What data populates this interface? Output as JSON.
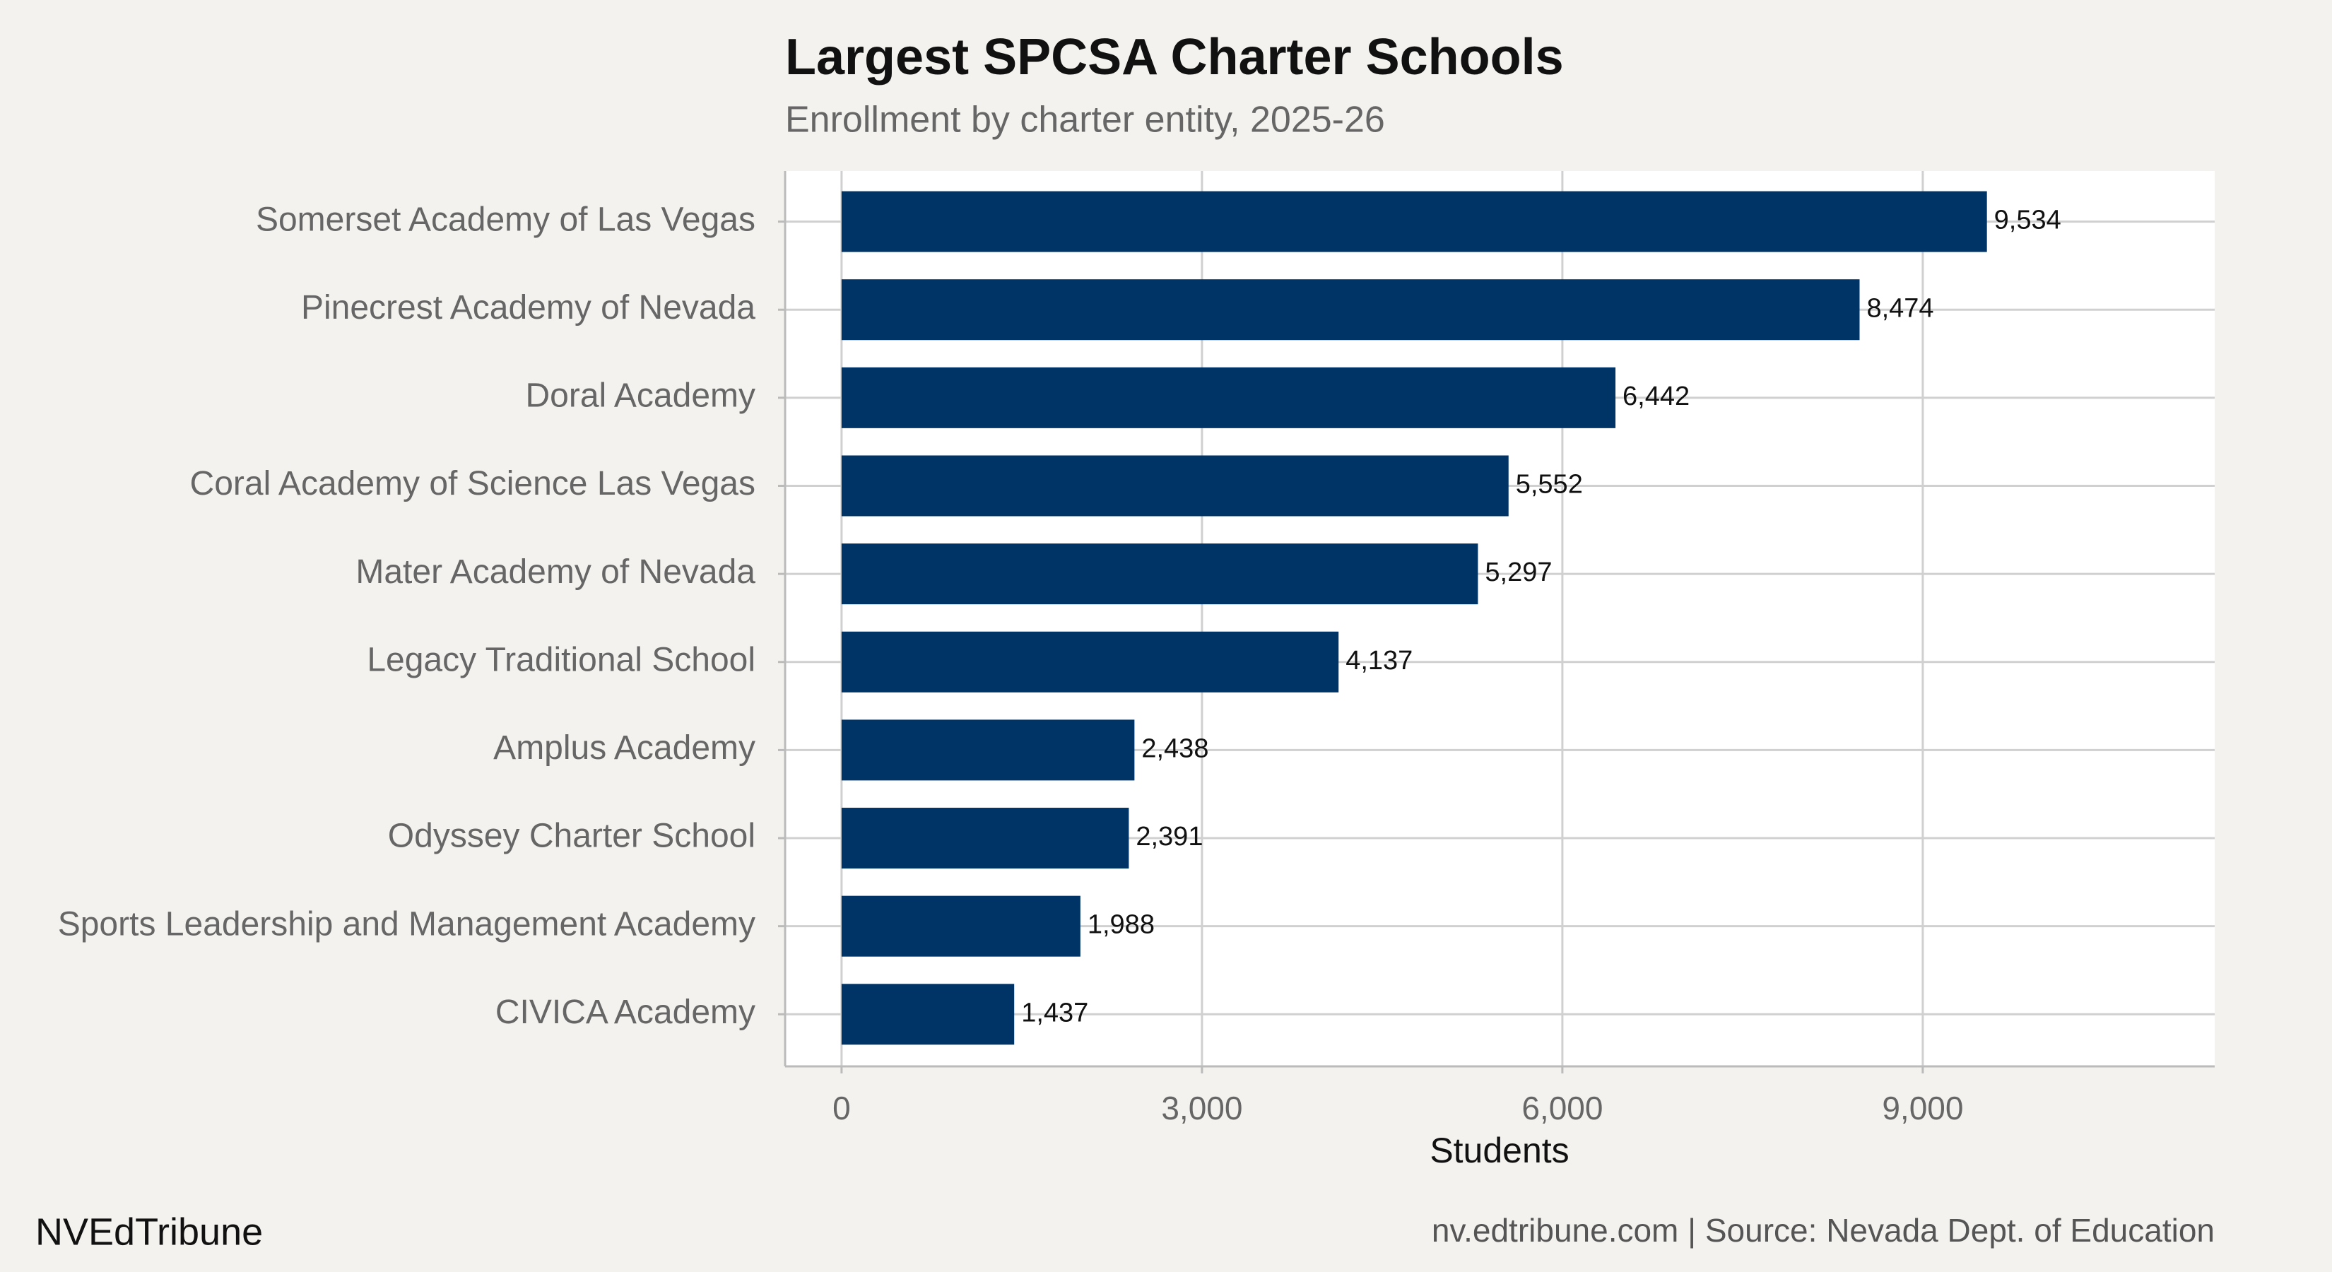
{
  "chart_data": {
    "type": "bar",
    "orientation": "horizontal",
    "title": "Largest SPCSA Charter Schools",
    "subtitle": "Enrollment by charter entity, 2025-26",
    "x_label": "Students",
    "categories": [
      "Somerset Academy of Las Vegas",
      "Pinecrest Academy of Nevada",
      "Doral Academy",
      "Coral Academy of Science Las Vegas",
      "Mater Academy of Nevada",
      "Legacy Traditional School",
      "Amplus Academy",
      "Odyssey Charter School",
      "Sports Leadership and Management Academy",
      "CIVICA Academy"
    ],
    "values": [
      9534,
      8474,
      6442,
      5552,
      5297,
      4137,
      2438,
      2391,
      1988,
      1437
    ],
    "value_labels": [
      "9,534",
      "8,474",
      "6,442",
      "5,552",
      "5,297",
      "4,137",
      "2,438",
      "2,391",
      "1,988",
      "1,437"
    ],
    "color": "#003366",
    "xlim": [
      -470,
      11430
    ],
    "xticks": [
      0,
      {
        "value": 3000,
        "label": "3,000"
      },
      {
        "value": 6000,
        "label": "6,000"
      },
      {
        "value": 9000,
        "label": "9,000"
      }
    ],
    "grid": true,
    "brand": "NVEdTribune",
    "source": "nv.edtribune.com | Source: Nevada Dept. of Education"
  }
}
